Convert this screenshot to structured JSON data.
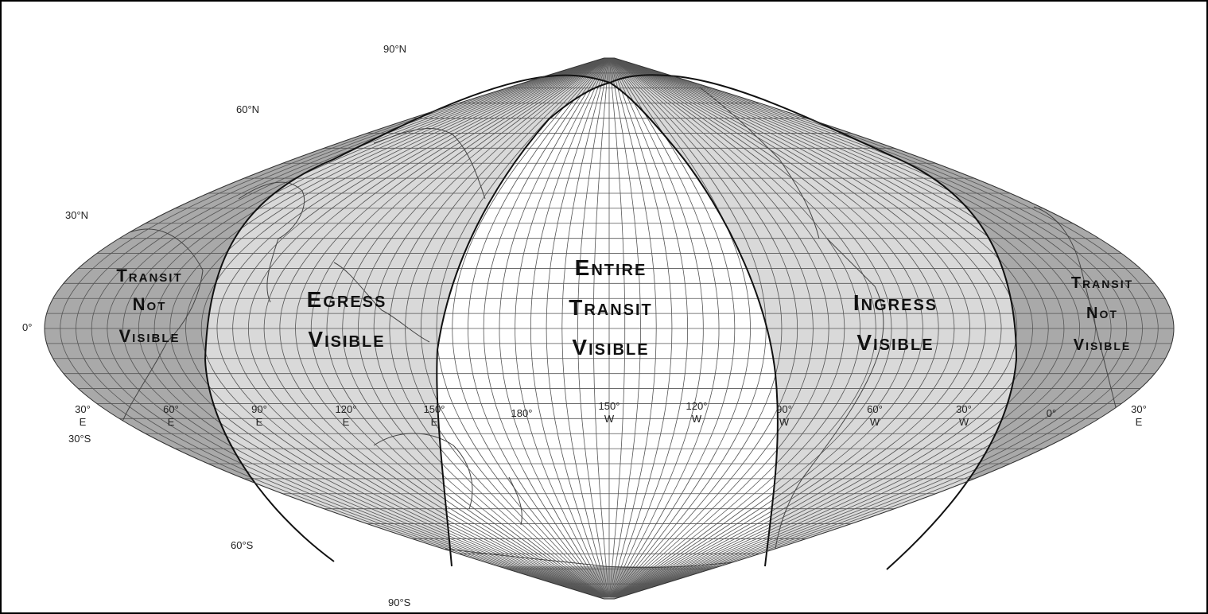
{
  "map": {
    "projection": "sinusoidal",
    "central_meridian": "150°W",
    "colors": {
      "not_visible": "#a9a9a9",
      "partial": "#d9d9d9",
      "entire": "#ffffff",
      "grid": "#555555",
      "coast": "#444444",
      "boundary": "#111111"
    },
    "latitude_labels": [
      "90°N",
      "60°N",
      "30°N",
      "0°",
      "30°S",
      "60°S",
      "90°S"
    ],
    "longitude_labels": [
      {
        "deg": "30°",
        "hem": "E"
      },
      {
        "deg": "60°",
        "hem": "E"
      },
      {
        "deg": "90°",
        "hem": "E"
      },
      {
        "deg": "120°",
        "hem": "E"
      },
      {
        "deg": "150°",
        "hem": "E"
      },
      {
        "deg": "180°",
        "hem": ""
      },
      {
        "deg": "150°",
        "hem": "W"
      },
      {
        "deg": "120°",
        "hem": "W"
      },
      {
        "deg": "90°",
        "hem": "W"
      },
      {
        "deg": "60°",
        "hem": "W"
      },
      {
        "deg": "30°",
        "hem": "W"
      },
      {
        "deg": "0°",
        "hem": ""
      },
      {
        "deg": "30°",
        "hem": "E"
      }
    ],
    "zones": {
      "not_visible_left": [
        "Transit",
        "Not",
        "Visible"
      ],
      "egress": [
        "Egress",
        "Visible"
      ],
      "entire": [
        "Entire",
        "Transit",
        "Visible"
      ],
      "ingress": [
        "Ingress",
        "Visible"
      ],
      "not_visible_right": [
        "Transit",
        "Not",
        "Visible"
      ]
    }
  }
}
